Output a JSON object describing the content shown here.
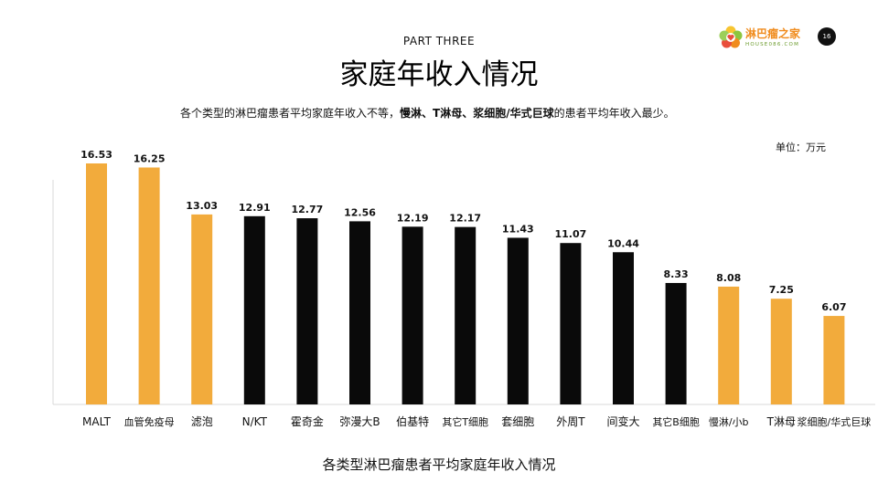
{
  "header": {
    "section_label": "PART THREE",
    "title": "家庭年收入情况",
    "page_number": "16"
  },
  "logo": {
    "name": "淋巴瘤之家",
    "site": "HOUSE086.COM"
  },
  "intro": {
    "part1": "各个类型的淋巴瘤患者平均家庭年收入不等，",
    "bold": "慢淋、T淋母、浆细胞/华式巨球",
    "part2": "的患者平均年收入最少。"
  },
  "unit_label": "单位：万元",
  "caption": "各类型淋巴瘤患者平均家庭年收入情况",
  "chart_data": {
    "type": "bar",
    "categories": [
      "MALT",
      "血管免疫母",
      "滤泡",
      "N/KT",
      "霍奇金",
      "弥漫大B",
      "伯基特",
      "其它T细胞",
      "套细胞",
      "外周T",
      "间变大",
      "其它B细胞",
      "慢淋/小b",
      "T淋母",
      "浆细胞/华式巨球"
    ],
    "values": [
      16.53,
      16.25,
      13.03,
      12.91,
      12.77,
      12.56,
      12.19,
      12.17,
      11.43,
      11.07,
      10.44,
      8.33,
      8.08,
      7.25,
      6.07
    ],
    "value_labels": [
      "16.53",
      "16.25",
      "13.03",
      "12.91",
      "12.77",
      "12.56",
      "12.19",
      "12.17",
      "11.43",
      "11.07",
      "10.44",
      "8.33",
      "8.08",
      "7.25",
      "6.07"
    ],
    "highlight": [
      true,
      true,
      true,
      false,
      false,
      false,
      false,
      false,
      false,
      false,
      false,
      false,
      true,
      true,
      true
    ],
    "colors": {
      "highlight": "#f2ab3c",
      "normal": "#0a0a0a",
      "axis": "#d9d9d9"
    },
    "ylim": [
      0,
      16.53
    ],
    "grid": false,
    "legend": "none"
  }
}
